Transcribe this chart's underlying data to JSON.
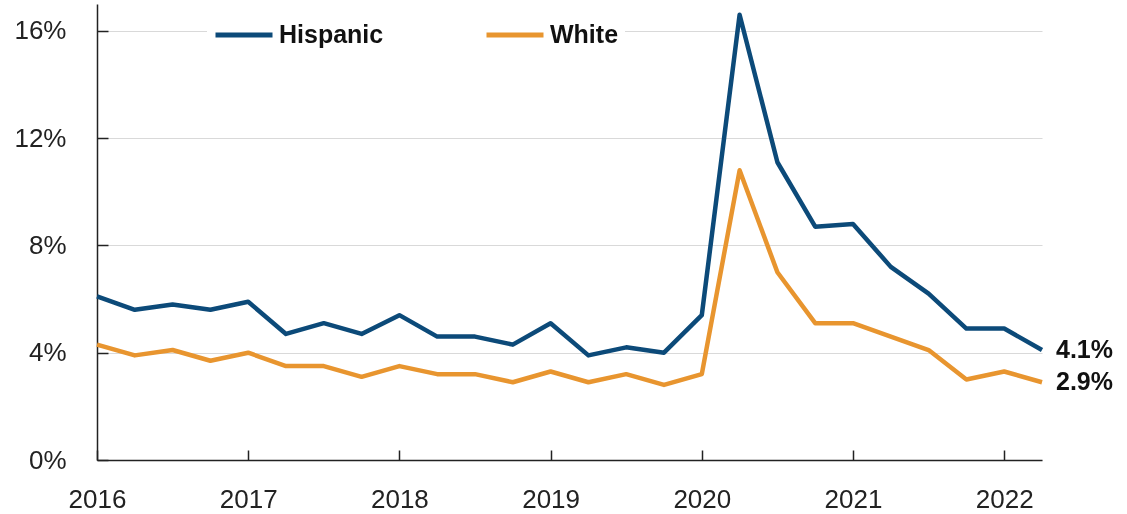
{
  "chart_data": {
    "type": "line",
    "x": [
      2016,
      2016.25,
      2016.5,
      2016.75,
      2017,
      2017.25,
      2017.5,
      2017.75,
      2018,
      2018.25,
      2018.5,
      2018.75,
      2019,
      2019.25,
      2019.5,
      2019.75,
      2020,
      2020.25,
      2020.5,
      2020.75,
      2021,
      2021.25,
      2021.5,
      2021.75,
      2022,
      2022.25
    ],
    "series": [
      {
        "name": "Hispanic",
        "color": "#0c4a79",
        "values": [
          6.1,
          5.6,
          5.8,
          5.6,
          5.9,
          4.7,
          5.1,
          4.7,
          5.4,
          4.6,
          4.6,
          4.3,
          5.1,
          3.9,
          4.2,
          4.0,
          5.4,
          16.6,
          11.1,
          8.7,
          8.8,
          7.2,
          6.2,
          4.9,
          4.9,
          4.1
        ],
        "value_labels": [
          null,
          null,
          null,
          null,
          null,
          null,
          null,
          null,
          null,
          null,
          null,
          null,
          null,
          null,
          null,
          null,
          null,
          null,
          null,
          null,
          null,
          null,
          null,
          null,
          null,
          "4.1%"
        ]
      },
      {
        "name": "White",
        "color": "#e8952f",
        "values": [
          4.3,
          3.9,
          4.1,
          3.7,
          4.0,
          3.5,
          3.5,
          3.1,
          3.5,
          3.2,
          3.2,
          2.9,
          3.3,
          2.9,
          3.2,
          2.8,
          3.2,
          10.8,
          7.0,
          5.1,
          5.1,
          4.6,
          4.1,
          3.0,
          3.3,
          2.9
        ],
        "value_labels": [
          null,
          null,
          null,
          null,
          null,
          null,
          null,
          null,
          null,
          null,
          null,
          null,
          null,
          null,
          null,
          null,
          null,
          null,
          null,
          null,
          null,
          null,
          null,
          null,
          null,
          "2.9%"
        ]
      }
    ],
    "xlim": [
      2016,
      2022.25
    ],
    "xticks": [
      2016,
      2017,
      2018,
      2019,
      2020,
      2021,
      2022
    ],
    "ylim": [
      0,
      17
    ],
    "yticks": [
      {
        "value": 0,
        "label": "0%"
      },
      {
        "value": 4,
        "label": "4%"
      },
      {
        "value": 8,
        "label": "8%"
      },
      {
        "value": 12,
        "label": "12%"
      },
      {
        "value": 16,
        "label": "16%"
      }
    ],
    "grid": "y",
    "legend": "top"
  }
}
